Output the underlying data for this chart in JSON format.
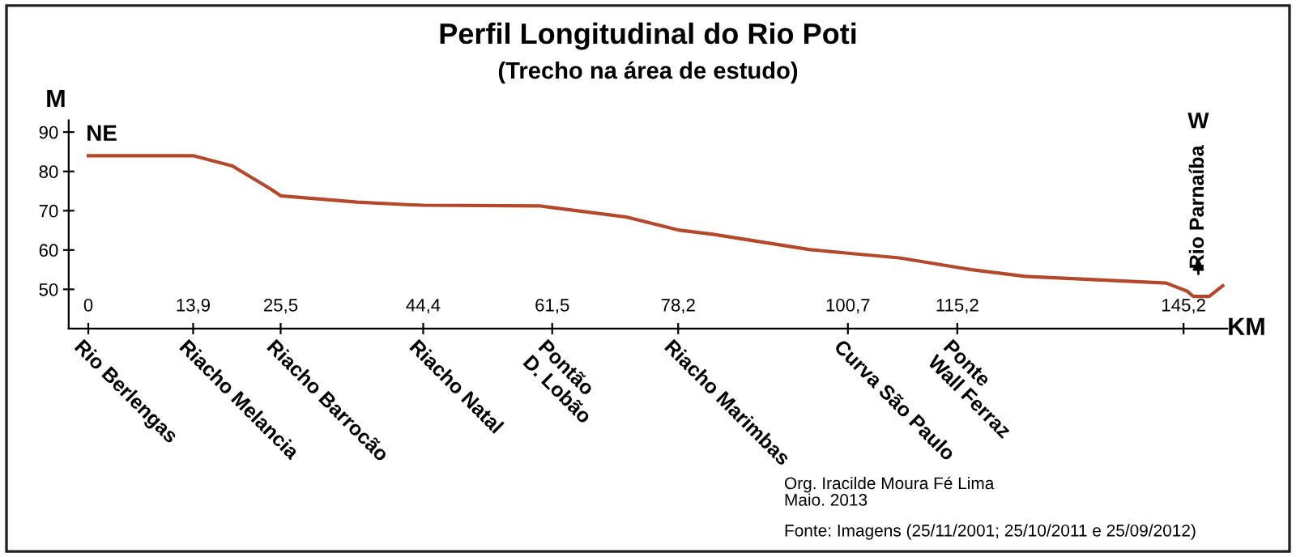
{
  "chart_data": {
    "type": "line",
    "title": "Perfil Longitudinal do Rio Poti",
    "subtitle": "(Trecho na área de estudo)",
    "xlabel": "KM",
    "ylabel": "M",
    "series": [
      {
        "color": "#b5472a",
        "x": [
          0,
          13.9,
          19.1,
          24.1,
          25.5,
          35.6,
          42.7,
          44.4,
          60,
          61.5,
          71.3,
          78.2,
          82.8,
          95.7,
          100.7,
          107.5,
          115.2,
          117.1,
          124.2,
          135,
          142.9,
          145.7,
          146.5,
          148.6,
          150.4
        ],
        "values": [
          84,
          84,
          81.4,
          75.6,
          73.8,
          72.2,
          71.5,
          71.4,
          71.2,
          70.8,
          68.4,
          65.1,
          64,
          60.1,
          59.2,
          58,
          55.6,
          55,
          53.3,
          52.3,
          51.6,
          49.5,
          48.2,
          48.2,
          50.9
        ]
      }
    ],
    "xlim": [
      -2.6,
      151
    ],
    "ylim": [
      40,
      93
    ],
    "xticks": [
      0,
      {
        "value": 13.9,
        "label": "13,9"
      },
      {
        "value": 25.5,
        "label": "25,5"
      },
      {
        "value": 44.4,
        "label": "44,4"
      },
      {
        "value": 61.5,
        "label": "61,5"
      },
      {
        "value": 78.2,
        "label": "78,2"
      },
      {
        "value": 100.7,
        "label": "100,7"
      },
      {
        "value": 115.2,
        "label": "115,2"
      },
      {
        "value": 145.2,
        "label": "145,2"
      }
    ],
    "yticks": [
      50,
      60,
      70,
      80,
      90
    ],
    "grid": false,
    "legend": false,
    "marker": "none",
    "line_style": "solid",
    "annotations": [
      "Rio Berlengas",
      "Riacho Melancia",
      "Riacho Barrocão",
      "Riacho Natal",
      "Pontão\nD. Lobão",
      "Riacho Marimbas",
      "Curva São Paulo",
      "Ponte\nWall Ferraz",
      "NE",
      "W",
      "Rio Parnaíba",
      "Org. Iracilde Moura Fé Lima",
      "Maio. 2013",
      "Fonte: Imagens (25/11/2001; 25/10/2011 e 25/09/2012)"
    ]
  }
}
